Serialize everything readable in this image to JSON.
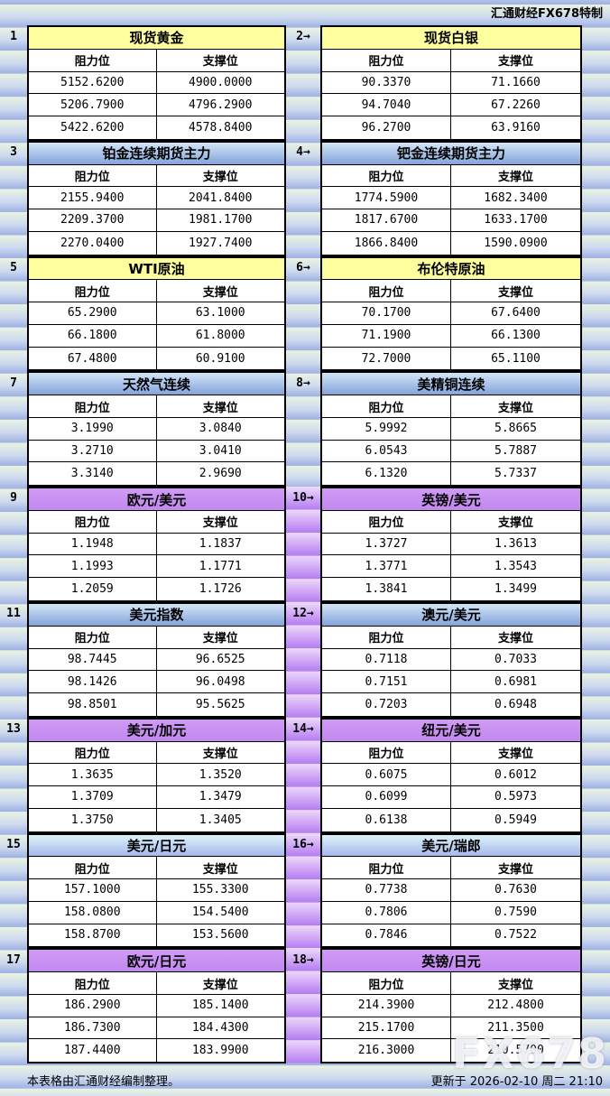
{
  "header": {
    "brand_label": "汇通财经FX678特制"
  },
  "footer": {
    "left_note": "本表格由汇通财经编制整理。",
    "updated": "更新于 2026-02-10 周二 21:10",
    "watermark": "FX678"
  },
  "colors": {
    "yellow_header": "#feff9e",
    "blue_header_top": "#d2e5f8",
    "blue_header_bottom": "#84a3da",
    "cyan_header_top": "#dcf3fa",
    "cyan_header_bottom": "#a7b8ea",
    "purple_header": "#c893f0",
    "background_stripe_green": "#e9f3e1",
    "background_stripe_blue": "#9db1e3",
    "spacer_purple_light": "#ecd9fb",
    "spacer_purple_dark": "#b27df0",
    "table_border": "#000000"
  },
  "chart_data": [
    {
      "type": "table",
      "num_label": "1",
      "style": "yellow",
      "title": "现货黄金",
      "columns": [
        "阻力位",
        "支撑位"
      ],
      "rows": [
        [
          "5152.6200",
          "4900.0000"
        ],
        [
          "5206.7900",
          "4796.2900"
        ],
        [
          "5422.6200",
          "4578.8400"
        ]
      ]
    },
    {
      "type": "table",
      "num_label": "2→",
      "style": "yellow",
      "title": "现货白银",
      "columns": [
        "阻力位",
        "支撑位"
      ],
      "rows": [
        [
          "90.3370",
          "71.1660"
        ],
        [
          "94.7040",
          "67.2260"
        ],
        [
          "96.2700",
          "63.9160"
        ]
      ]
    },
    {
      "type": "table",
      "num_label": "3",
      "style": "blue",
      "title": "铂金连续期货主力",
      "columns": [
        "阻力位",
        "支撑位"
      ],
      "rows": [
        [
          "2155.9400",
          "2041.8400"
        ],
        [
          "2209.3700",
          "1981.1700"
        ],
        [
          "2270.0400",
          "1927.7400"
        ]
      ]
    },
    {
      "type": "table",
      "num_label": "4→",
      "style": "blue",
      "title": "钯金连续期货主力",
      "columns": [
        "阻力位",
        "支撑位"
      ],
      "rows": [
        [
          "1774.5900",
          "1682.3400"
        ],
        [
          "1817.6700",
          "1633.1700"
        ],
        [
          "1866.8400",
          "1590.0900"
        ]
      ]
    },
    {
      "type": "table",
      "num_label": "5",
      "style": "yellow",
      "title": "WTI原油",
      "columns": [
        "阻力位",
        "支撑位"
      ],
      "rows": [
        [
          "65.2900",
          "63.1000"
        ],
        [
          "66.1800",
          "61.8000"
        ],
        [
          "67.4800",
          "60.9100"
        ]
      ]
    },
    {
      "type": "table",
      "num_label": "6→",
      "style": "yellow",
      "title": "布伦特原油",
      "columns": [
        "阻力位",
        "支撑位"
      ],
      "rows": [
        [
          "70.1700",
          "67.6400"
        ],
        [
          "71.1900",
          "66.1300"
        ],
        [
          "72.7000",
          "65.1100"
        ]
      ]
    },
    {
      "type": "table",
      "num_label": "7",
      "style": "blue",
      "title": "天然气连续",
      "columns": [
        "阻力位",
        "支撑位"
      ],
      "rows": [
        [
          "3.1990",
          "3.0840"
        ],
        [
          "3.2710",
          "3.0410"
        ],
        [
          "3.3140",
          "2.9690"
        ]
      ]
    },
    {
      "type": "table",
      "num_label": "8→",
      "style": "blue",
      "title": "美精铜连续",
      "columns": [
        "阻力位",
        "支撑位"
      ],
      "rows": [
        [
          "5.9992",
          "5.8665"
        ],
        [
          "6.0543",
          "5.7887"
        ],
        [
          "6.1320",
          "5.7337"
        ]
      ]
    },
    {
      "type": "table",
      "num_label": "9",
      "style": "purple",
      "title": "欧元/美元",
      "columns": [
        "阻力位",
        "支撑位"
      ],
      "rows": [
        [
          "1.1948",
          "1.1837"
        ],
        [
          "1.1993",
          "1.1771"
        ],
        [
          "1.2059",
          "1.1726"
        ]
      ]
    },
    {
      "type": "table",
      "num_label": "10→",
      "style": "purple",
      "title": "英镑/美元",
      "columns": [
        "阻力位",
        "支撑位"
      ],
      "rows": [
        [
          "1.3727",
          "1.3613"
        ],
        [
          "1.3771",
          "1.3543"
        ],
        [
          "1.3841",
          "1.3499"
        ]
      ]
    },
    {
      "type": "table",
      "num_label": "11",
      "style": "blue",
      "title": "美元指数",
      "columns": [
        "阻力位",
        "支撑位"
      ],
      "rows": [
        [
          "98.7445",
          "96.6525"
        ],
        [
          "98.1426",
          "96.0498"
        ],
        [
          "98.8501",
          "95.5625"
        ]
      ]
    },
    {
      "type": "table",
      "num_label": "12→",
      "style": "blue",
      "title": "澳元/美元",
      "columns": [
        "阻力位",
        "支撑位"
      ],
      "rows": [
        [
          "0.7118",
          "0.7033"
        ],
        [
          "0.7151",
          "0.6981"
        ],
        [
          "0.7203",
          "0.6948"
        ]
      ]
    },
    {
      "type": "table",
      "num_label": "13",
      "style": "purple",
      "title": "美元/加元",
      "columns": [
        "阻力位",
        "支撑位"
      ],
      "rows": [
        [
          "1.3635",
          "1.3520"
        ],
        [
          "1.3709",
          "1.3479"
        ],
        [
          "1.3750",
          "1.3405"
        ]
      ]
    },
    {
      "type": "table",
      "num_label": "14→",
      "style": "purple",
      "title": "纽元/美元",
      "columns": [
        "阻力位",
        "支撑位"
      ],
      "rows": [
        [
          "0.6075",
          "0.6012"
        ],
        [
          "0.6099",
          "0.5973"
        ],
        [
          "0.6138",
          "0.5949"
        ]
      ]
    },
    {
      "type": "table",
      "num_label": "15",
      "style": "cyan",
      "title": "美元/日元",
      "columns": [
        "阻力位",
        "支撑位"
      ],
      "rows": [
        [
          "157.1000",
          "155.3300"
        ],
        [
          "158.0800",
          "154.5400"
        ],
        [
          "158.8700",
          "153.5600"
        ]
      ]
    },
    {
      "type": "table",
      "num_label": "16→",
      "style": "cyan",
      "title": "美元/瑞郎",
      "columns": [
        "阻力位",
        "支撑位"
      ],
      "rows": [
        [
          "0.7738",
          "0.7630"
        ],
        [
          "0.7806",
          "0.7590"
        ],
        [
          "0.7846",
          "0.7522"
        ]
      ]
    },
    {
      "type": "table",
      "num_label": "17",
      "style": "purple",
      "title": "欧元/日元",
      "columns": [
        "阻力位",
        "支撑位"
      ],
      "rows": [
        [
          "186.2900",
          "185.1400"
        ],
        [
          "186.7300",
          "184.4300"
        ],
        [
          "187.4400",
          "183.9900"
        ]
      ]
    },
    {
      "type": "table",
      "num_label": "18→",
      "style": "purple",
      "title": "英镑/日元",
      "columns": [
        "阻力位",
        "支撑位"
      ],
      "rows": [
        [
          "214.3900",
          "212.4800"
        ],
        [
          "215.1700",
          "211.3500"
        ],
        [
          "216.3000",
          "210.5700"
        ]
      ]
    }
  ]
}
